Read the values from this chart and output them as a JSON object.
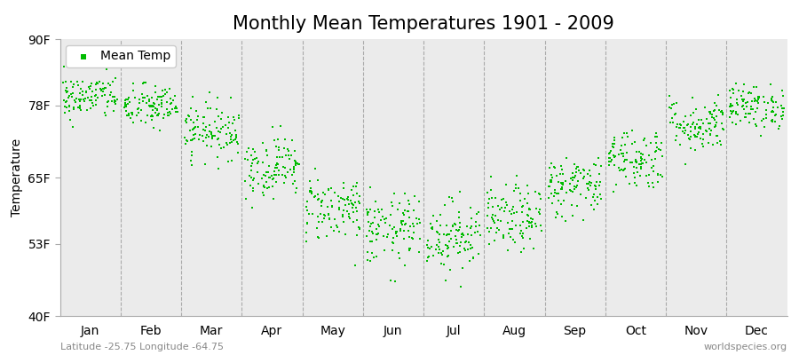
{
  "title": "Monthly Mean Temperatures 1901 - 2009",
  "ylabel": "Temperature",
  "yticks": [
    40,
    53,
    65,
    78,
    90
  ],
  "ytick_labels": [
    "40F",
    "53F",
    "65F",
    "78F",
    "90F"
  ],
  "ylim": [
    40,
    90
  ],
  "months": [
    "Jan",
    "Feb",
    "Mar",
    "Apr",
    "May",
    "Jun",
    "Jul",
    "Aug",
    "Sep",
    "Oct",
    "Nov",
    "Dec"
  ],
  "dot_color": "#00bb00",
  "dot_size": 2.5,
  "background_color": "#ebebeb",
  "outer_background": "#ffffff",
  "legend_label": "Mean Temp",
  "footer_left": "Latitude -25.75 Longitude -64.75",
  "footer_right": "worldspecies.org",
  "title_fontsize": 15,
  "axis_label_fontsize": 10,
  "tick_fontsize": 10,
  "footer_fontsize": 8,
  "num_years": 109,
  "monthly_mean_temps_F": {
    "Jan": 79.5,
    "Feb": 77.8,
    "Mar": 73.5,
    "Apr": 67.0,
    "May": 59.5,
    "Jun": 55.5,
    "Jul": 54.5,
    "Aug": 57.5,
    "Sep": 63.5,
    "Oct": 68.5,
    "Nov": 74.5,
    "Dec": 77.8
  },
  "monthly_std_F": {
    "Jan": 2.0,
    "Feb": 2.0,
    "Mar": 2.5,
    "Apr": 2.8,
    "May": 3.0,
    "Jun": 3.2,
    "Jul": 3.2,
    "Aug": 3.0,
    "Sep": 2.8,
    "Oct": 2.8,
    "Nov": 2.5,
    "Dec": 2.0
  }
}
